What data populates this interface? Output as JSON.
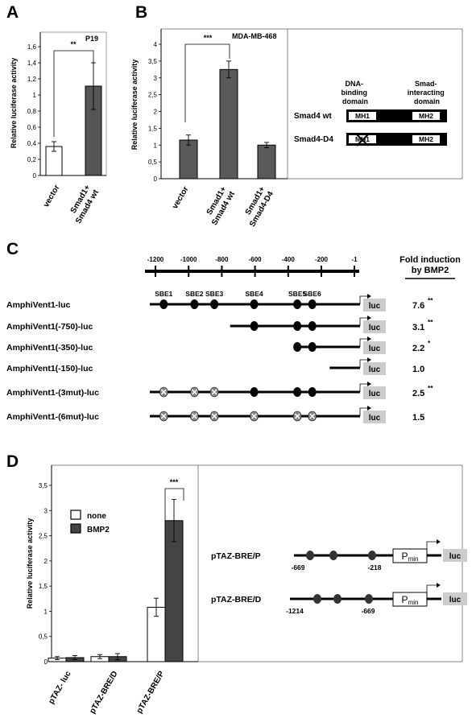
{
  "panels": {
    "A": {
      "label": "A",
      "tag": "P19",
      "ylabel": "Relative luciferase activity",
      "sig": "**"
    },
    "B": {
      "label": "B",
      "tag": "MDA-MB-468",
      "ylabel": "Relative luciferase activity",
      "sig": "***"
    },
    "C": {
      "label": "C",
      "fold_header_1": "Fold induction",
      "fold_header_2": "by BMP2"
    },
    "D": {
      "label": "D",
      "ylabel": "Relative luciferase activity",
      "sig": "***"
    }
  },
  "chart_data": [
    {
      "panel": "A",
      "type": "bar",
      "categories": [
        "vector",
        "Smad1+ Smad4 wt"
      ],
      "values": [
        0.36,
        1.11
      ],
      "errors": [
        0.06,
        0.29
      ],
      "colors": [
        "#ffffff",
        "#555555"
      ],
      "ylim": [
        0,
        1.6
      ],
      "ticks": [
        "0",
        "0,2",
        "0,4",
        "0,6",
        "0,8",
        "1",
        "1,2",
        "1,4",
        "1,6"
      ]
    },
    {
      "panel": "B",
      "type": "bar",
      "categories": [
        "vector",
        "Smad1+ Smad4 wt",
        "Smad1+ Smad4-D4"
      ],
      "values": [
        1.15,
        3.25,
        1.0
      ],
      "errors": [
        0.15,
        0.25,
        0.08
      ],
      "colors": [
        "#5a5a5a",
        "#5a5a5a",
        "#5a5a5a"
      ],
      "ylim": [
        0,
        4
      ],
      "ticks": [
        "0",
        "0,5",
        "1",
        "1,5",
        "2",
        "2,5",
        "3",
        "3,5",
        "4"
      ]
    },
    {
      "panel": "D",
      "type": "bar",
      "categories": [
        "pTAZ- luc",
        "pTAZ-BRE/D",
        "pTAZ-BRE/P"
      ],
      "series": [
        {
          "name": "none",
          "values": [
            0.07,
            0.1,
            1.08
          ],
          "errors": [
            0.03,
            0.04,
            0.18
          ],
          "color": "#ffffff"
        },
        {
          "name": "BMP2",
          "values": [
            0.08,
            0.1,
            2.8
          ],
          "errors": [
            0.04,
            0.06,
            0.42
          ],
          "color": "#444444"
        }
      ],
      "ylim": [
        0,
        3.5
      ],
      "ticks": [
        "0",
        "0,5",
        "1",
        "1,5",
        "2",
        "2,5",
        "3",
        "3,5"
      ],
      "legend": "top-left"
    }
  ],
  "domains": {
    "header_dna": [
      "DNA-",
      "binding",
      "domain"
    ],
    "header_smad": [
      "Smad-",
      "interacting",
      "domain"
    ],
    "rows": [
      {
        "name": "Smad4 wt",
        "mh1": "MH1",
        "mh2": "MH2",
        "deleted": false
      },
      {
        "name": "Smad4-D4",
        "mh1": "MH1",
        "mh2": "MH2",
        "deleted": true
      }
    ]
  },
  "promoter_scale": {
    "ticks": [
      "-1200",
      "-1000",
      "-800",
      "-600",
      "-400",
      "-200",
      "-1"
    ],
    "tick_values": [
      -1200,
      -1000,
      -800,
      -600,
      -400,
      -200,
      -1
    ]
  },
  "sbe_sites": [
    {
      "name": "SBE1",
      "pos": -1150
    },
    {
      "name": "SBE2",
      "pos": -965
    },
    {
      "name": "SBE3",
      "pos": -845
    },
    {
      "name": "SBE4",
      "pos": -605
    },
    {
      "name": "SBE5",
      "pos": -345
    },
    {
      "name": "SBE6",
      "pos": -255
    }
  ],
  "constructs": [
    {
      "label": "AmphiVent1-luc",
      "start": -1200,
      "fold": "7.6",
      "sig": "**",
      "sites": [
        "",
        "",
        "",
        "",
        "",
        ""
      ]
    },
    {
      "label": "AmphiVent1(-750)-luc",
      "start": -750,
      "fold": "3.1",
      "sig": "**",
      "sites": [
        "-",
        "-",
        "-",
        "",
        "",
        ""
      ]
    },
    {
      "label": "AmphiVent1(-350)-luc",
      "start": -350,
      "fold": "2.2",
      "sig": "*",
      "sites": [
        "-",
        "-",
        "-",
        "-",
        "",
        ""
      ]
    },
    {
      "label": "AmphiVent1(-150)-luc",
      "start": -150,
      "fold": "1.0",
      "sig": "",
      "sites": [
        "-",
        "-",
        "-",
        "-",
        "-",
        "-"
      ]
    },
    {
      "label": "AmphiVent1-(3mut)-luc",
      "start": -1200,
      "fold": "2.5",
      "sig": "**",
      "sites": [
        "x",
        "x",
        "x",
        "",
        "",
        ""
      ]
    },
    {
      "label": "AmphiVent1-(6mut)-luc",
      "start": -1200,
      "fold": "1.5",
      "sig": "",
      "sites": [
        "x",
        "x",
        "x",
        "x",
        "x",
        "x"
      ]
    }
  ],
  "luc_label": "luc",
  "taz": [
    {
      "name": "pTAZ-BRE/P",
      "left_label": "-669",
      "right_label": "-218",
      "pmin": "P",
      "pmin_sub": "min",
      "luc": "luc"
    },
    {
      "name": "pTAZ-BRE/D",
      "left_label": "-1214",
      "right_label": "-669",
      "pmin": "P",
      "pmin_sub": "min",
      "luc": "luc"
    }
  ]
}
